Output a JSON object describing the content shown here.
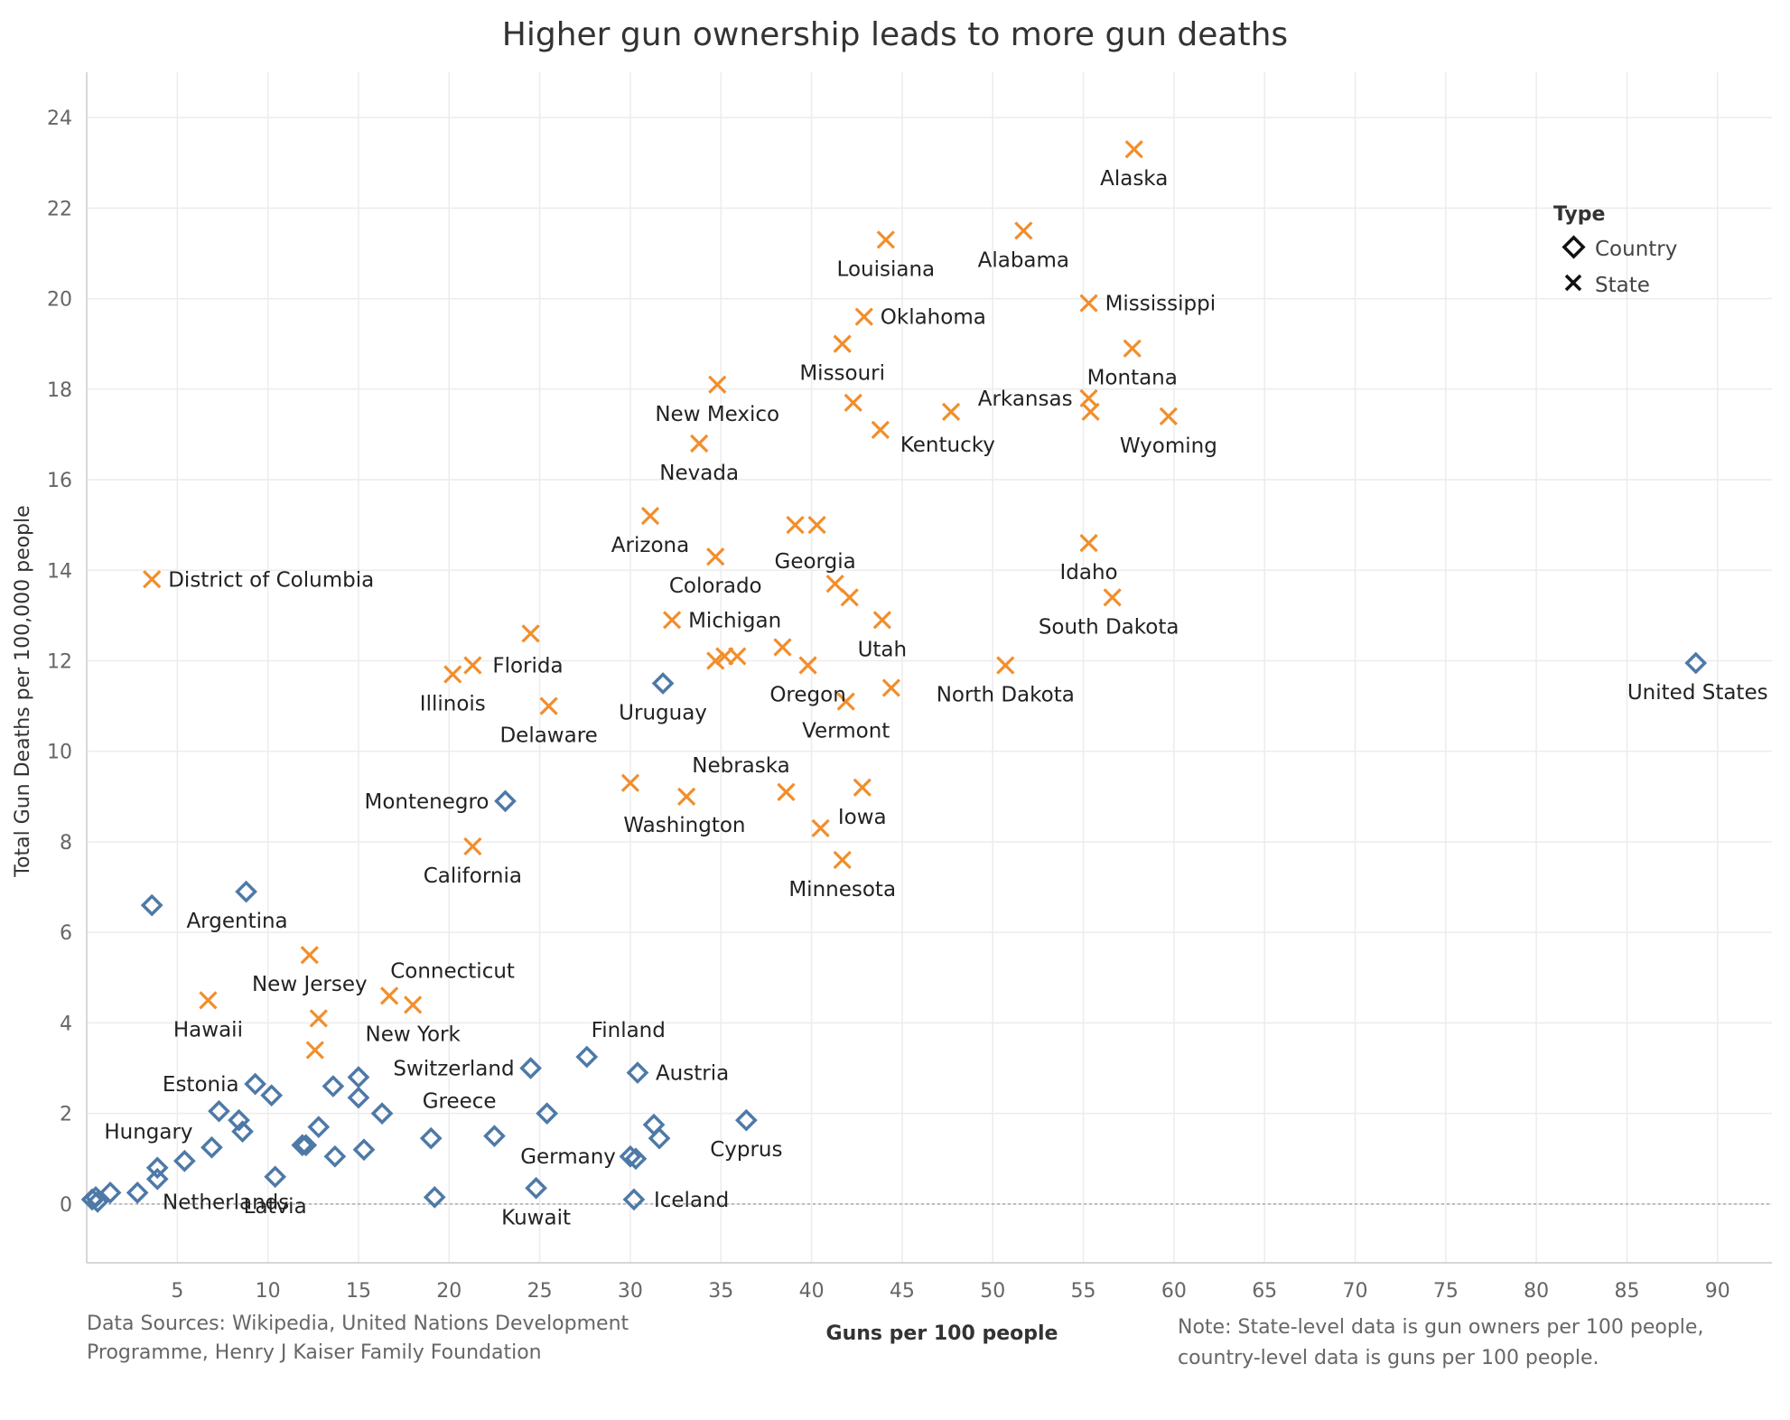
{
  "chart_data": {
    "type": "scatter",
    "title": "Higher gun ownership leads to more gun deaths",
    "xlabel": "Guns per 100 people",
    "ylabel": "Total Gun Deaths per 100,000 people",
    "xlim": [
      0,
      93
    ],
    "ylim": [
      -1.3,
      25
    ],
    "x_ticks": [
      5,
      10,
      15,
      20,
      25,
      30,
      35,
      40,
      45,
      50,
      55,
      60,
      65,
      70,
      75,
      80,
      85,
      90
    ],
    "y_ticks": [
      0,
      2,
      4,
      6,
      8,
      10,
      12,
      14,
      16,
      18,
      20,
      22,
      24
    ],
    "grid": true,
    "reference_line_y": 0,
    "legend": {
      "title": "Type",
      "position": "top-right",
      "entries": [
        {
          "label": "Country",
          "marker": "diamond",
          "color": "#4e79a7"
        },
        {
          "label": "State",
          "marker": "x",
          "color": "#f28e2b"
        }
      ]
    },
    "source_note": [
      "Data Sources: Wikipedia, United Nations Development",
      "Programme, Henry J Kaiser Family Foundation"
    ],
    "footnote": [
      "Note: State-level data is gun owners per 100 people,",
      "country-level data is guns per 100 people."
    ],
    "series": [
      {
        "name": "State",
        "marker": "x",
        "color": "#f28e2b",
        "points": [
          {
            "x": 57.8,
            "y": 23.3,
            "label": "Alaska"
          },
          {
            "x": 51.7,
            "y": 21.5,
            "label": "Alabama"
          },
          {
            "x": 44.1,
            "y": 21.3,
            "label": "Louisiana"
          },
          {
            "x": 55.3,
            "y": 19.9,
            "label": "Mississippi"
          },
          {
            "x": 42.9,
            "y": 19.6,
            "label": "Oklahoma"
          },
          {
            "x": 41.7,
            "y": 19.0,
            "label": "Missouri"
          },
          {
            "x": 57.7,
            "y": 18.9,
            "label": "Montana"
          },
          {
            "x": 34.8,
            "y": 18.1,
            "label": "New Mexico"
          },
          {
            "x": 55.3,
            "y": 17.8,
            "label": "Arkansas"
          },
          {
            "x": 42.3,
            "y": 17.7,
            "label": ""
          },
          {
            "x": 47.7,
            "y": 17.5,
            "label": ""
          },
          {
            "x": 55.4,
            "y": 17.5,
            "label": ""
          },
          {
            "x": 59.7,
            "y": 17.4,
            "label": "Wyoming"
          },
          {
            "x": 43.8,
            "y": 17.1,
            "label": "Kentucky"
          },
          {
            "x": 33.8,
            "y": 16.8,
            "label": "Nevada"
          },
          {
            "x": 31.1,
            "y": 15.2,
            "label": "Arizona"
          },
          {
            "x": 39.1,
            "y": 15.0,
            "label": ""
          },
          {
            "x": 40.3,
            "y": 15.0,
            "label": "Georgia"
          },
          {
            "x": 55.3,
            "y": 14.6,
            "label": "Idaho"
          },
          {
            "x": 34.7,
            "y": 14.3,
            "label": "Colorado"
          },
          {
            "x": 3.6,
            "y": 13.8,
            "label": "District of Columbia"
          },
          {
            "x": 41.3,
            "y": 13.7,
            "label": ""
          },
          {
            "x": 42.1,
            "y": 13.4,
            "label": ""
          },
          {
            "x": 56.6,
            "y": 13.4,
            "label": "South Dakota"
          },
          {
            "x": 32.3,
            "y": 12.9,
            "label": "Michigan"
          },
          {
            "x": 43.9,
            "y": 12.9,
            "label": "Utah"
          },
          {
            "x": 24.5,
            "y": 12.6,
            "label": ""
          },
          {
            "x": 38.4,
            "y": 12.3,
            "label": ""
          },
          {
            "x": 34.7,
            "y": 12.0,
            "label": ""
          },
          {
            "x": 35.2,
            "y": 12.1,
            "label": ""
          },
          {
            "x": 35.9,
            "y": 12.1,
            "label": ""
          },
          {
            "x": 21.3,
            "y": 11.9,
            "label": "Florida"
          },
          {
            "x": 39.8,
            "y": 11.9,
            "label": "Oregon"
          },
          {
            "x": 50.7,
            "y": 11.9,
            "label": "North Dakota"
          },
          {
            "x": 20.2,
            "y": 11.7,
            "label": "Illinois"
          },
          {
            "x": 44.4,
            "y": 11.4,
            "label": ""
          },
          {
            "x": 41.9,
            "y": 11.1,
            "label": "Vermont"
          },
          {
            "x": 25.5,
            "y": 11.0,
            "label": "Delaware"
          },
          {
            "x": 30.0,
            "y": 9.3,
            "label": "Washington"
          },
          {
            "x": 42.8,
            "y": 9.2,
            "label": "Iowa"
          },
          {
            "x": 38.6,
            "y": 9.1,
            "label": "Nebraska"
          },
          {
            "x": 33.1,
            "y": 9.0,
            "label": ""
          },
          {
            "x": 40.5,
            "y": 8.3,
            "label": ""
          },
          {
            "x": 21.3,
            "y": 7.9,
            "label": "California"
          },
          {
            "x": 41.7,
            "y": 7.6,
            "label": "Minnesota"
          },
          {
            "x": 12.3,
            "y": 5.5,
            "label": "New Jersey"
          },
          {
            "x": 16.7,
            "y": 4.6,
            "label": "Connecticut"
          },
          {
            "x": 6.7,
            "y": 4.5,
            "label": "Hawaii"
          },
          {
            "x": 18.0,
            "y": 4.4,
            "label": "New York"
          },
          {
            "x": 12.8,
            "y": 4.1,
            "label": ""
          },
          {
            "x": 12.6,
            "y": 3.4,
            "label": ""
          }
        ]
      },
      {
        "name": "Country",
        "marker": "diamond",
        "color": "#4e79a7",
        "points": [
          {
            "x": 88.8,
            "y": 11.95,
            "label": "United States"
          },
          {
            "x": 31.8,
            "y": 11.5,
            "label": "Uruguay"
          },
          {
            "x": 23.1,
            "y": 8.9,
            "label": "Montenegro"
          },
          {
            "x": 8.8,
            "y": 6.9,
            "label": "Argentina"
          },
          {
            "x": 3.6,
            "y": 6.6,
            "label": ""
          },
          {
            "x": 27.6,
            "y": 3.25,
            "label": "Finland"
          },
          {
            "x": 24.5,
            "y": 3.0,
            "label": "Switzerland"
          },
          {
            "x": 30.4,
            "y": 2.9,
            "label": "Austria"
          },
          {
            "x": 15.0,
            "y": 2.8,
            "label": ""
          },
          {
            "x": 9.3,
            "y": 2.65,
            "label": "Estonia"
          },
          {
            "x": 13.6,
            "y": 2.6,
            "label": ""
          },
          {
            "x": 10.2,
            "y": 2.4,
            "label": ""
          },
          {
            "x": 15.0,
            "y": 2.35,
            "label": ""
          },
          {
            "x": 7.3,
            "y": 2.05,
            "label": ""
          },
          {
            "x": 25.4,
            "y": 2.0,
            "label": "Greece"
          },
          {
            "x": 16.3,
            "y": 2.0,
            "label": ""
          },
          {
            "x": 36.4,
            "y": 1.85,
            "label": "Cyprus"
          },
          {
            "x": 8.4,
            "y": 1.85,
            "label": ""
          },
          {
            "x": 31.3,
            "y": 1.75,
            "label": ""
          },
          {
            "x": 12.8,
            "y": 1.7,
            "label": ""
          },
          {
            "x": 8.6,
            "y": 1.6,
            "label": "Hungary"
          },
          {
            "x": 22.5,
            "y": 1.5,
            "label": ""
          },
          {
            "x": 31.6,
            "y": 1.45,
            "label": ""
          },
          {
            "x": 19.0,
            "y": 1.45,
            "label": ""
          },
          {
            "x": 11.9,
            "y": 1.3,
            "label": ""
          },
          {
            "x": 12.1,
            "y": 1.3,
            "label": ""
          },
          {
            "x": 6.9,
            "y": 1.25,
            "label": ""
          },
          {
            "x": 15.3,
            "y": 1.2,
            "label": ""
          },
          {
            "x": 30.0,
            "y": 1.05,
            "label": "Germany"
          },
          {
            "x": 13.7,
            "y": 1.05,
            "label": ""
          },
          {
            "x": 30.3,
            "y": 1.0,
            "label": ""
          },
          {
            "x": 5.4,
            "y": 0.95,
            "label": ""
          },
          {
            "x": 3.9,
            "y": 0.8,
            "label": ""
          },
          {
            "x": 10.4,
            "y": 0.6,
            "label": "Latvia"
          },
          {
            "x": 3.9,
            "y": 0.55,
            "label": ""
          },
          {
            "x": 24.8,
            "y": 0.35,
            "label": "Kuwait"
          },
          {
            "x": 1.3,
            "y": 0.25,
            "label": ""
          },
          {
            "x": 2.8,
            "y": 0.25,
            "label": ""
          },
          {
            "x": 19.2,
            "y": 0.15,
            "label": ""
          },
          {
            "x": 0.5,
            "y": 0.15,
            "label": ""
          },
          {
            "x": 0.3,
            "y": 0.1,
            "label": ""
          },
          {
            "x": 30.2,
            "y": 0.1,
            "label": "Iceland"
          },
          {
            "x": 0.6,
            "y": 0.05,
            "label": "Netherlands"
          }
        ]
      }
    ]
  }
}
